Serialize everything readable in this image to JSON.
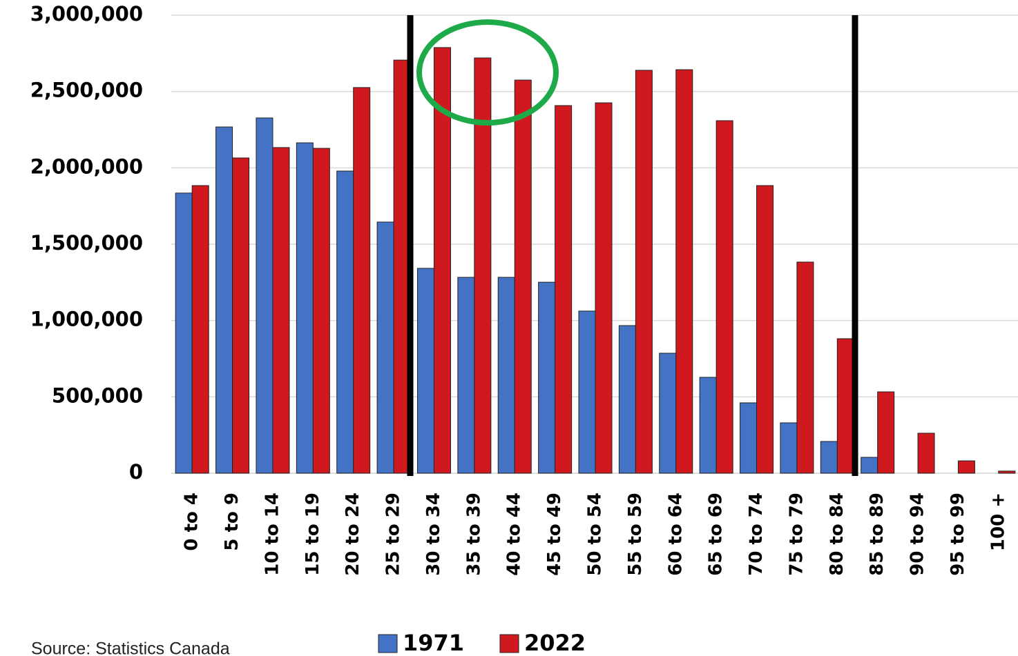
{
  "chart_data": {
    "type": "bar",
    "categories": [
      "0 to 4",
      "5 to 9",
      "10 to 14",
      "15 to 19",
      "20 to 24",
      "25 to 29",
      "30 to 34",
      "35 to 39",
      "40 to 44",
      "45 to 49",
      "50 to 54",
      "55 to 59",
      "60 to 64",
      "65 to 69",
      "70 to 74",
      "75 to 79",
      "80 to 84",
      "85 to 89",
      "90 to 94",
      "95 to 99",
      "100 +"
    ],
    "series": [
      {
        "name": "1971",
        "color": "#4472c4",
        "values": [
          1835000,
          2268000,
          2327000,
          2164000,
          1979000,
          1645000,
          1342000,
          1283000,
          1283000,
          1251000,
          1062000,
          967000,
          786000,
          628000,
          461000,
          330000,
          208000,
          104000,
          0,
          0,
          0
        ]
      },
      {
        "name": "2022",
        "color": "#d0191f",
        "values": [
          1884000,
          2065000,
          2133000,
          2128000,
          2526000,
          2706000,
          2788000,
          2720000,
          2575000,
          2408000,
          2426000,
          2639000,
          2643000,
          2309000,
          1884000,
          1383000,
          881000,
          533000,
          262000,
          81000,
          14000
        ]
      }
    ],
    "ylim": [
      0,
      3000000
    ],
    "yticks": [
      0,
      {
        "value": 500000,
        "label": "500,000"
      },
      {
        "value": 1000000,
        "label": "1,000,000"
      },
      {
        "value": 1500000,
        "label": "1,500,000"
      },
      {
        "value": 2000000,
        "label": "2,000,000"
      },
      {
        "value": 2500000,
        "label": "2,500,000"
      },
      {
        "value": 3000000,
        "label": "3,000,000"
      }
    ],
    "grid": true,
    "source": "Source: Statistics Canada"
  }
}
